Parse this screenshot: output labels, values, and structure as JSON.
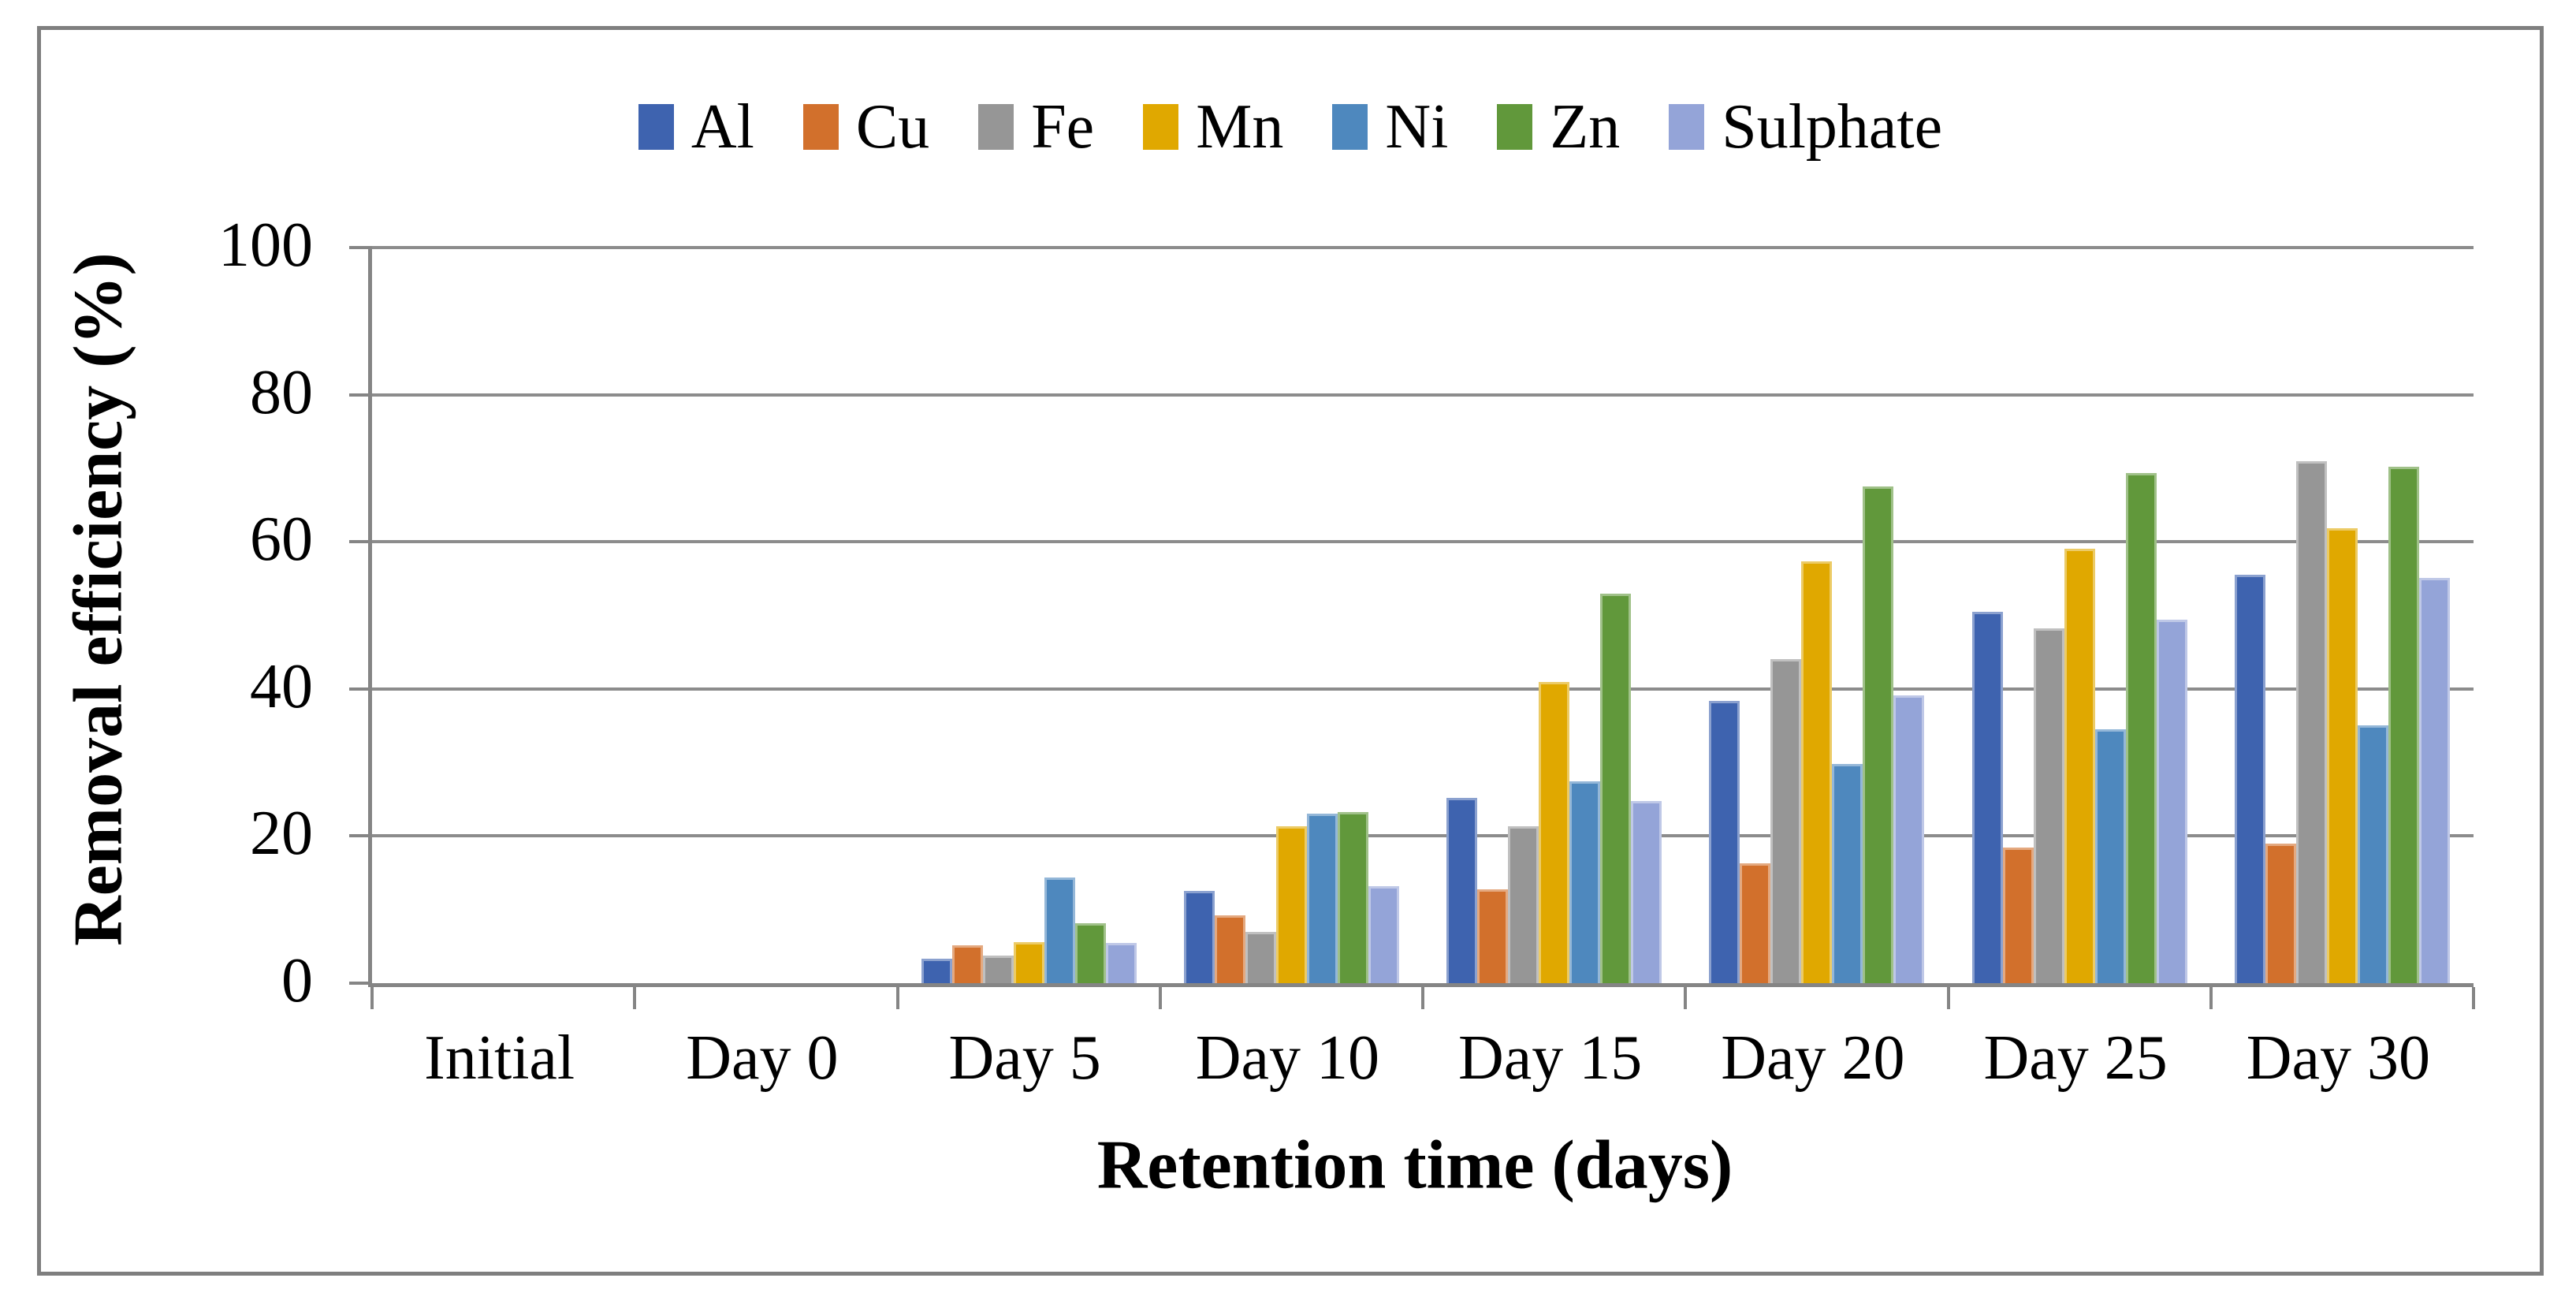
{
  "figure": {
    "background": "#FFFFFF",
    "frame_color": "#7F7F7F",
    "grid_color": "#8C8C8C",
    "axis_color": "#858585",
    "text_color": "#000000"
  },
  "chart_data": {
    "type": "bar",
    "title": "",
    "xlabel": "Retention time (days)",
    "ylabel": "Removal efficiency (%)",
    "categories": [
      "Initial",
      "Day 0",
      "Day 5",
      "Day 10",
      "Day 15",
      "Day 20",
      "Day 25",
      "Day 30"
    ],
    "series": [
      {
        "name": "Al",
        "color": "#3E63AF",
        "values": [
          0,
          0,
          3.3,
          12.5,
          25.2,
          38.4,
          50.5,
          55.5
        ]
      },
      {
        "name": "Cu",
        "color": "#D2702C",
        "values": [
          0,
          0,
          5.1,
          9.2,
          12.8,
          16.3,
          18.4,
          19.0
        ]
      },
      {
        "name": "Fe",
        "color": "#969696",
        "values": [
          0,
          0,
          3.8,
          7.0,
          21.3,
          44.1,
          48.2,
          71.0
        ]
      },
      {
        "name": "Mn",
        "color": "#E0A800",
        "values": [
          0,
          0,
          5.6,
          21.3,
          40.9,
          57.3,
          59.1,
          61.8
        ]
      },
      {
        "name": "Ni",
        "color": "#4E88BE",
        "values": [
          0,
          0,
          14.4,
          23.0,
          27.4,
          29.8,
          34.5,
          35.0
        ]
      },
      {
        "name": "Zn",
        "color": "#61983B",
        "values": [
          0,
          0,
          8.1,
          23.3,
          53.0,
          67.5,
          69.3,
          70.2
        ]
      },
      {
        "name": "Sulphate",
        "color": "#94A4D8",
        "values": [
          0,
          0,
          5.5,
          13.2,
          24.8,
          39.1,
          49.4,
          55.1
        ]
      }
    ],
    "ylim": [
      0,
      100
    ],
    "yticks": [
      0,
      20,
      40,
      60,
      80,
      100
    ],
    "grid": "horizontal",
    "legend_position": "top"
  }
}
